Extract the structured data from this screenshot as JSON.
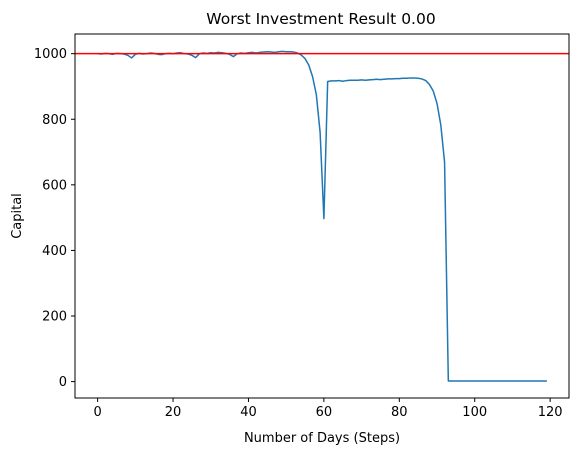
{
  "chart_data": {
    "type": "line",
    "title": "Worst Investment Result 0.00",
    "xlabel": "Number of Days (Steps)",
    "ylabel": "Capital",
    "xlim": [
      -6,
      125
    ],
    "ylim": [
      -50,
      1060
    ],
    "xticks": [
      0,
      20,
      40,
      60,
      80,
      100,
      120
    ],
    "yticks": [
      0,
      200,
      400,
      600,
      800,
      1000
    ],
    "grid": false,
    "series": [
      {
        "color": "#1f77b4",
        "x": [
          0,
          1,
          2,
          3,
          4,
          5,
          6,
          7,
          8,
          9,
          10,
          11,
          12,
          13,
          14,
          15,
          16,
          17,
          18,
          19,
          20,
          21,
          22,
          23,
          24,
          25,
          26,
          27,
          28,
          29,
          30,
          31,
          32,
          33,
          34,
          35,
          36,
          37,
          38,
          39,
          40,
          41,
          42,
          43,
          44,
          45,
          46,
          47,
          48,
          49,
          50,
          51,
          52,
          53,
          54,
          55,
          56,
          57,
          58,
          59,
          60,
          61,
          62,
          63,
          64,
          65,
          66,
          67,
          68,
          69,
          70,
          71,
          72,
          73,
          74,
          75,
          76,
          77,
          78,
          79,
          80,
          81,
          82,
          83,
          84,
          85,
          86,
          87,
          88,
          89,
          90,
          91,
          92,
          93,
          94,
          95,
          96,
          97,
          98,
          99,
          100,
          101,
          102,
          103,
          104,
          105,
          106,
          107,
          108,
          109,
          110,
          111,
          112,
          113,
          114,
          115,
          116,
          117,
          118,
          119
        ],
        "y": [
          1000,
          999,
          1001,
          1000,
          998,
          1001,
          1000,
          999,
          995,
          987,
          998,
          1001,
          999,
          1000,
          1002,
          1001,
          998,
          997,
          1000,
          1001,
          1000,
          1002,
          1003,
          1000,
          999,
          995,
          988,
          1000,
          1002,
          1001,
          1003,
          1002,
          1004,
          1003,
          1001,
          998,
          991,
          1000,
          1002,
          1001,
          1003,
          1004,
          1002,
          1004,
          1005,
          1006,
          1005,
          1004,
          1006,
          1007,
          1006,
          1006,
          1005,
          1002,
          996,
          985,
          965,
          930,
          875,
          760,
          497,
          915,
          917,
          917,
          918,
          916,
          918,
          919,
          919,
          919,
          920,
          919,
          920,
          921,
          922,
          921,
          922,
          923,
          923,
          924,
          924,
          925,
          925,
          926,
          926,
          925,
          923,
          918,
          906,
          886,
          848,
          783,
          670,
          2,
          2,
          2,
          2,
          2,
          2,
          2,
          2,
          2,
          2,
          2,
          2,
          2,
          2,
          2,
          2,
          2,
          2,
          2,
          2,
          2,
          2,
          2,
          2,
          2,
          2,
          2
        ]
      }
    ],
    "hlines": [
      {
        "y": 1000,
        "color": "#ff0000"
      }
    ]
  }
}
